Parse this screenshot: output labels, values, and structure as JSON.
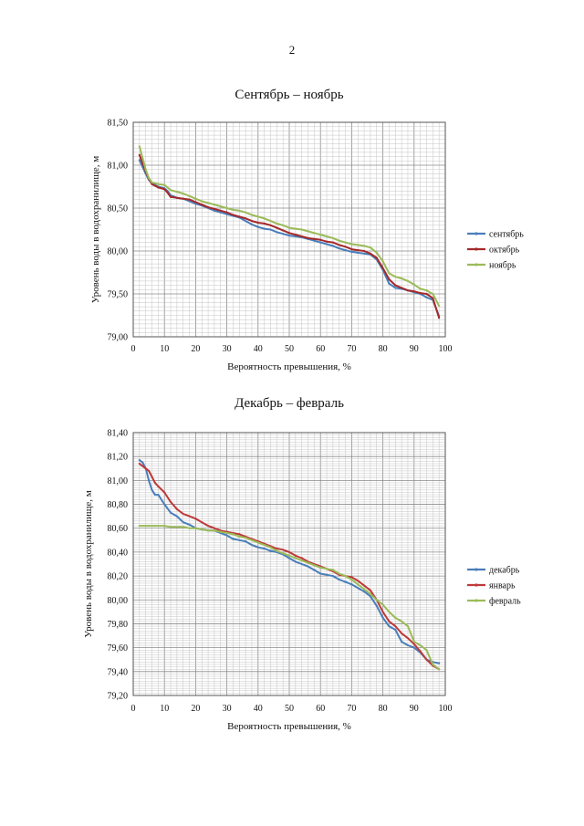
{
  "page": {
    "number": "2"
  },
  "chart_data": [
    {
      "type": "line",
      "title": "Сентябрь – ноябрь",
      "xlabel": "Вероятность превышения, %",
      "ylabel": "Уровень воды в водохранилище, м",
      "xlim": [
        0,
        100
      ],
      "ylim": [
        79.0,
        81.5
      ],
      "xticks": [
        "0",
        "10",
        "20",
        "30",
        "40",
        "50",
        "60",
        "70",
        "80",
        "90",
        "100"
      ],
      "yticks": [
        "79,00",
        "79,50",
        "80,00",
        "80,50",
        "81,00",
        "81,50"
      ],
      "grid": true,
      "legend": "right",
      "series": [
        {
          "name": "сентябрь",
          "color": "#4a7ebb",
          "x": [
            2,
            3,
            4,
            5,
            6,
            8,
            10,
            11,
            12,
            14,
            16,
            18,
            20,
            22,
            24,
            26,
            28,
            30,
            32,
            34,
            36,
            38,
            40,
            42,
            44,
            46,
            48,
            50,
            52,
            54,
            56,
            58,
            60,
            62,
            64,
            66,
            68,
            70,
            72,
            74,
            76,
            78,
            80,
            82,
            84,
            86,
            88,
            90,
            92,
            94,
            96,
            98
          ],
          "y": [
            81.06,
            80.98,
            80.9,
            80.83,
            80.79,
            80.75,
            80.73,
            80.7,
            80.65,
            80.62,
            80.61,
            80.58,
            80.55,
            80.53,
            80.5,
            80.47,
            80.45,
            80.43,
            80.41,
            80.39,
            80.35,
            80.31,
            80.28,
            80.26,
            80.25,
            80.22,
            80.2,
            80.18,
            80.17,
            80.16,
            80.14,
            80.12,
            80.1,
            80.08,
            80.06,
            80.03,
            80.01,
            79.99,
            79.98,
            79.97,
            79.96,
            79.9,
            79.78,
            79.62,
            79.57,
            79.56,
            79.54,
            79.52,
            79.5,
            79.46,
            79.43,
            79.24
          ]
        },
        {
          "name": "октябрь",
          "color": "#a52a2a",
          "x": [
            2,
            3,
            4,
            5,
            6,
            8,
            10,
            11,
            12,
            14,
            16,
            18,
            20,
            22,
            24,
            26,
            28,
            30,
            32,
            34,
            36,
            38,
            40,
            42,
            44,
            46,
            48,
            50,
            52,
            54,
            56,
            58,
            60,
            62,
            64,
            66,
            68,
            70,
            72,
            74,
            76,
            78,
            80,
            82,
            84,
            86,
            88,
            90,
            92,
            94,
            96,
            98
          ],
          "y": [
            81.12,
            81.02,
            80.93,
            80.84,
            80.78,
            80.74,
            80.72,
            80.68,
            80.63,
            80.62,
            80.61,
            80.6,
            80.57,
            80.54,
            80.51,
            80.49,
            80.47,
            80.45,
            80.42,
            80.4,
            80.38,
            80.35,
            80.33,
            80.32,
            80.3,
            80.27,
            80.24,
            80.21,
            80.19,
            80.17,
            80.15,
            80.14,
            80.13,
            80.11,
            80.1,
            80.07,
            80.05,
            80.02,
            80.01,
            80.0,
            79.97,
            79.92,
            79.8,
            79.67,
            79.6,
            79.57,
            79.54,
            79.53,
            79.51,
            79.5,
            79.45,
            79.22
          ]
        },
        {
          "name": "ноябрь",
          "color": "#9bbb59",
          "x": [
            2,
            3,
            4,
            5,
            6,
            8,
            10,
            11,
            12,
            14,
            16,
            18,
            20,
            22,
            24,
            26,
            28,
            30,
            32,
            34,
            36,
            38,
            40,
            42,
            44,
            46,
            48,
            50,
            52,
            54,
            56,
            58,
            60,
            62,
            64,
            66,
            68,
            70,
            72,
            74,
            76,
            78,
            80,
            82,
            84,
            86,
            88,
            90,
            92,
            94,
            96,
            98
          ],
          "y": [
            81.22,
            81.08,
            80.95,
            80.85,
            80.8,
            80.78,
            80.77,
            80.74,
            80.71,
            80.69,
            80.67,
            80.64,
            80.61,
            80.58,
            80.56,
            80.54,
            80.52,
            80.5,
            80.48,
            80.47,
            80.45,
            80.42,
            80.4,
            80.38,
            80.35,
            80.32,
            80.3,
            80.27,
            80.26,
            80.25,
            80.23,
            80.21,
            80.19,
            80.17,
            80.15,
            80.12,
            80.1,
            80.08,
            80.07,
            80.06,
            80.04,
            79.98,
            79.88,
            79.74,
            79.7,
            79.68,
            79.65,
            79.61,
            79.56,
            79.54,
            79.5,
            79.36
          ]
        }
      ]
    },
    {
      "type": "line",
      "title": "Декабрь – февраль",
      "xlabel": "Вероятность превышения, %",
      "ylabel": "Уровень воды в водохранилище, м",
      "xlim": [
        0,
        100
      ],
      "ylim": [
        79.2,
        81.4
      ],
      "xticks": [
        "0",
        "10",
        "20",
        "30",
        "40",
        "50",
        "60",
        "70",
        "80",
        "90",
        "100"
      ],
      "yticks": [
        "79,20",
        "79,40",
        "79,60",
        "79,80",
        "80,00",
        "80,20",
        "80,40",
        "80,60",
        "80,80",
        "81,00",
        "81,20",
        "81,40"
      ],
      "grid": true,
      "legend": "right",
      "series": [
        {
          "name": "декабрь",
          "color": "#4a7ebb",
          "x": [
            2,
            3,
            4,
            5,
            6,
            7,
            8,
            10,
            12,
            14,
            16,
            18,
            20,
            22,
            24,
            26,
            28,
            30,
            32,
            34,
            36,
            38,
            40,
            42,
            44,
            46,
            48,
            50,
            52,
            54,
            56,
            58,
            60,
            62,
            64,
            66,
            68,
            70,
            72,
            74,
            76,
            78,
            80,
            82,
            84,
            86,
            88,
            90,
            92,
            94,
            96,
            98
          ],
          "y": [
            81.17,
            81.15,
            81.1,
            81.0,
            80.92,
            80.88,
            80.88,
            80.8,
            80.73,
            80.7,
            80.65,
            80.63,
            80.6,
            80.59,
            80.58,
            80.58,
            80.56,
            80.54,
            80.51,
            80.5,
            80.49,
            80.46,
            80.44,
            80.43,
            80.41,
            80.4,
            80.38,
            80.35,
            80.32,
            80.3,
            80.28,
            80.25,
            80.22,
            80.21,
            80.2,
            80.17,
            80.15,
            80.13,
            80.1,
            80.07,
            80.03,
            79.95,
            79.85,
            79.78,
            79.75,
            79.65,
            79.62,
            79.6,
            79.56,
            79.5,
            79.48,
            79.47
          ]
        },
        {
          "name": "январь",
          "color": "#be3a3a",
          "x": [
            2,
            3,
            4,
            5,
            6,
            7,
            8,
            10,
            12,
            14,
            16,
            18,
            20,
            22,
            24,
            26,
            28,
            30,
            32,
            34,
            36,
            38,
            40,
            42,
            44,
            46,
            48,
            50,
            52,
            54,
            56,
            58,
            60,
            62,
            64,
            66,
            68,
            70,
            72,
            74,
            76,
            78,
            80,
            82,
            84,
            86,
            88,
            90,
            92,
            94,
            96,
            98
          ],
          "y": [
            81.14,
            81.12,
            81.1,
            81.08,
            81.03,
            80.98,
            80.95,
            80.9,
            80.82,
            80.76,
            80.72,
            80.7,
            80.68,
            80.65,
            80.62,
            80.6,
            80.58,
            80.57,
            80.56,
            80.55,
            80.53,
            80.51,
            80.49,
            80.47,
            80.45,
            80.43,
            80.42,
            80.4,
            80.37,
            80.35,
            80.32,
            80.3,
            80.28,
            80.26,
            80.24,
            80.21,
            80.2,
            80.19,
            80.16,
            80.12,
            80.08,
            80.0,
            79.9,
            79.82,
            79.78,
            79.72,
            79.68,
            79.63,
            79.57,
            79.5,
            79.45,
            79.42
          ]
        },
        {
          "name": "февраль",
          "color": "#9bbb59",
          "x": [
            2,
            3,
            4,
            5,
            6,
            7,
            8,
            10,
            12,
            14,
            16,
            18,
            20,
            22,
            24,
            26,
            28,
            30,
            32,
            34,
            36,
            38,
            40,
            42,
            44,
            46,
            48,
            50,
            52,
            54,
            56,
            58,
            60,
            62,
            64,
            66,
            68,
            70,
            72,
            74,
            76,
            78,
            80,
            82,
            84,
            86,
            88,
            90,
            92,
            94,
            96,
            98
          ],
          "y": [
            80.62,
            80.62,
            80.62,
            80.62,
            80.62,
            80.62,
            80.62,
            80.62,
            80.61,
            80.61,
            80.61,
            80.6,
            80.6,
            80.59,
            80.58,
            80.58,
            80.57,
            80.56,
            80.55,
            80.53,
            80.52,
            80.5,
            80.48,
            80.46,
            80.44,
            80.41,
            80.39,
            80.37,
            80.35,
            80.33,
            80.31,
            80.29,
            80.27,
            80.26,
            80.25,
            80.22,
            80.2,
            80.17,
            80.13,
            80.09,
            80.05,
            80.0,
            79.96,
            79.9,
            79.85,
            79.82,
            79.78,
            79.65,
            79.62,
            79.58,
            79.46,
            79.42
          ]
        }
      ]
    }
  ]
}
